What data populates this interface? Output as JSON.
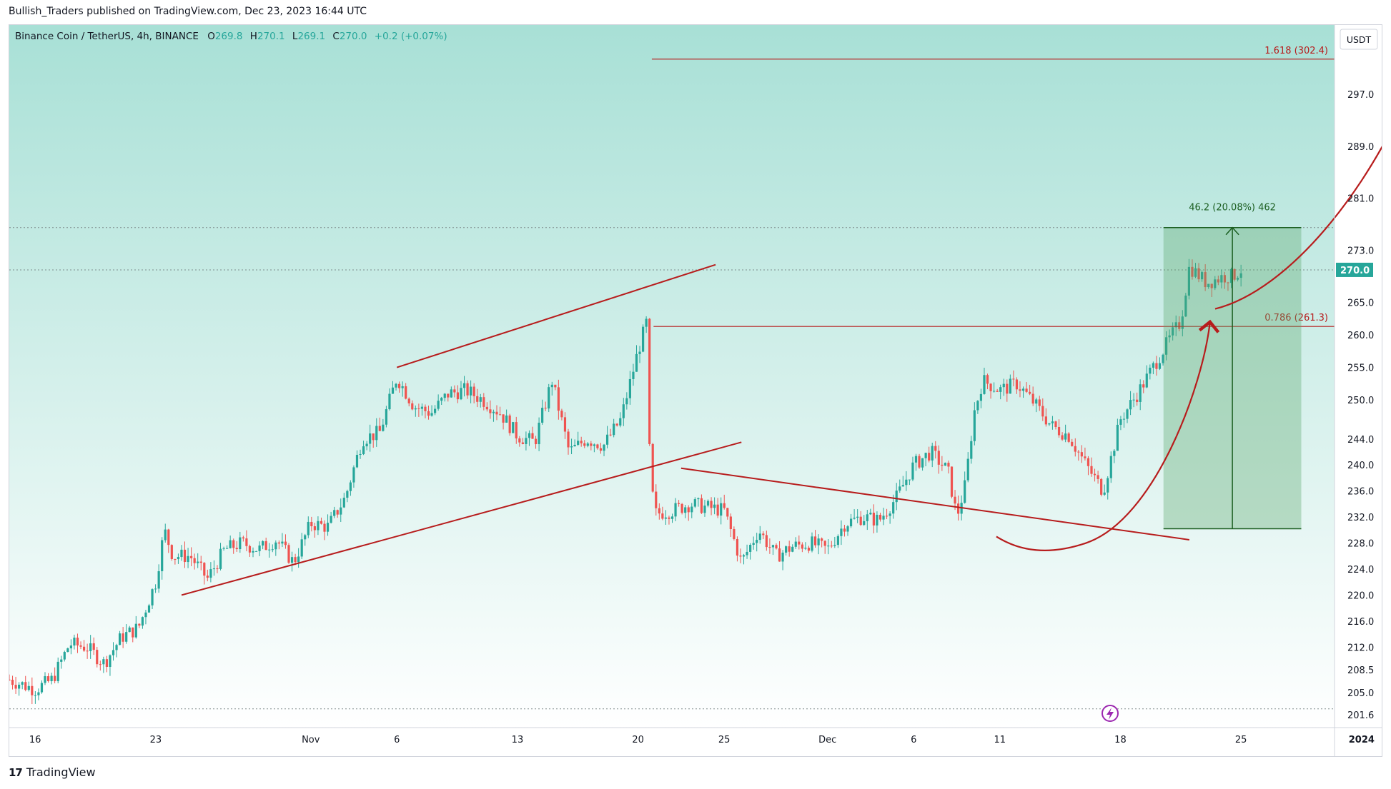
{
  "header": {
    "published": "Bullish_Traders published on TradingView.com, Dec 23, 2023 16:44 UTC"
  },
  "legend": {
    "symbol": "Binance Coin / TetherUS, 4h, BINANCE",
    "o_label": "O",
    "o": "269.8",
    "h_label": "H",
    "h": "270.1",
    "l_label": "L",
    "l": "269.1",
    "c_label": "C",
    "c": "270.0",
    "change": "+0.2 (+0.07%)"
  },
  "currency": "USDT",
  "last_price_label": "270.0",
  "footer": {
    "brand": "TradingView",
    "logo": "17"
  },
  "colors": {
    "up": "#26a69a",
    "down": "#ef5350",
    "drawing": "#b71c1c",
    "measure_fill": "#5aa56a",
    "measure_line": "#1b5e20",
    "text": "#131722",
    "bg_top": "#a8e0d6",
    "bg_bottom": "#ffffff"
  },
  "icons": {
    "logo": "tradingview-logo-icon",
    "flash": "lightning-icon"
  },
  "chart_data": {
    "type": "candlestick",
    "timeframe": "4h",
    "x_range_days": [
      -17.5,
      46.5
    ],
    "y_range": [
      200.5,
      304.5
    ],
    "x_ticks": [
      {
        "day": -16,
        "label": "16"
      },
      {
        "day": -9,
        "label": "23"
      },
      {
        "day": 0,
        "label": "Nov"
      },
      {
        "day": 5,
        "label": "6"
      },
      {
        "day": 12,
        "label": "13"
      },
      {
        "day": 19,
        "label": "20"
      },
      {
        "day": 24,
        "label": "25"
      },
      {
        "day": 30,
        "label": "Dec"
      },
      {
        "day": 35,
        "label": "6"
      },
      {
        "day": 40,
        "label": "11"
      },
      {
        "day": 47,
        "label": "18"
      },
      {
        "day": 54,
        "label": "25"
      },
      {
        "day": 61,
        "label": "2024"
      }
    ],
    "y_ticks": [
      201.6,
      205.0,
      208.5,
      212.0,
      216.0,
      220.0,
      224.0,
      228.0,
      232.0,
      236.0,
      240.0,
      244.0,
      250.0,
      255.0,
      260.0,
      265.0,
      273.0,
      281.0,
      289.0,
      297.0
    ],
    "close_path": [
      [
        -17.5,
        207
      ],
      [
        -16,
        205.5
      ],
      [
        -15,
        207
      ],
      [
        -14,
        212.5
      ],
      [
        -13,
        212
      ],
      [
        -12,
        209.5
      ],
      [
        -11,
        213.5
      ],
      [
        -10,
        215
      ],
      [
        -9,
        222
      ],
      [
        -8.5,
        230
      ],
      [
        -8,
        226
      ],
      [
        -7,
        226
      ],
      [
        -6,
        222.5
      ],
      [
        -5,
        227
      ],
      [
        -4,
        228
      ],
      [
        -3,
        227
      ],
      [
        -2,
        228.5
      ],
      [
        -1,
        225
      ],
      [
        0,
        231
      ],
      [
        1,
        230.5
      ],
      [
        2,
        235
      ],
      [
        3,
        244
      ],
      [
        4,
        245
      ],
      [
        5,
        253.5
      ],
      [
        6,
        249
      ],
      [
        7,
        248
      ],
      [
        8,
        251
      ],
      [
        9,
        251.5
      ],
      [
        10,
        250
      ],
      [
        11,
        248
      ],
      [
        12,
        244.5
      ],
      [
        13,
        243.5
      ],
      [
        14,
        253
      ],
      [
        15,
        242
      ],
      [
        16,
        244
      ],
      [
        17,
        243
      ],
      [
        18,
        247
      ],
      [
        19,
        257.5
      ],
      [
        19.5,
        262
      ],
      [
        19.7,
        238
      ],
      [
        20,
        232.5
      ],
      [
        21,
        233
      ],
      [
        22,
        234
      ],
      [
        23,
        233.5
      ],
      [
        24,
        233
      ],
      [
        25,
        225
      ],
      [
        26,
        230
      ],
      [
        27,
        226
      ],
      [
        28,
        227.5
      ],
      [
        29,
        228
      ],
      [
        30,
        227
      ],
      [
        31,
        231
      ],
      [
        32,
        232
      ],
      [
        33,
        231.5
      ],
      [
        34,
        235
      ],
      [
        35,
        240
      ],
      [
        36,
        242
      ],
      [
        37,
        239
      ],
      [
        37.5,
        232
      ],
      [
        38,
        237
      ],
      [
        38.5,
        248
      ],
      [
        39,
        253
      ],
      [
        40,
        251.5
      ],
      [
        41,
        252.5
      ],
      [
        42,
        249.5
      ],
      [
        43,
        246
      ],
      [
        44,
        244.5
      ],
      [
        45,
        240
      ],
      [
        46,
        236
      ],
      [
        47,
        247
      ],
      [
        48,
        251
      ],
      [
        49,
        255.5
      ],
      [
        50,
        260
      ],
      [
        50.5,
        262
      ],
      [
        51,
        270.5
      ],
      [
        52,
        268
      ],
      [
        53,
        269
      ],
      [
        53.5,
        269
      ],
      [
        54,
        270
      ]
    ],
    "candle_count": 380,
    "current_price": 270.0,
    "current_price_line": 270.0,
    "high_line": 276.5,
    "low_line": 202.5,
    "fib_levels": [
      {
        "ratio": "1.618",
        "price": 302.4,
        "label": "1.618 (302.4)",
        "start_day": 19.8
      },
      {
        "ratio": "0.786",
        "price": 261.3,
        "label": "0.786 (261.3)",
        "start_day": 19.9
      }
    ],
    "trendlines": [
      {
        "name": "channel-upper",
        "from": [
          5,
          255
        ],
        "to": [
          23.5,
          270.8
        ]
      },
      {
        "name": "channel-lower",
        "from": [
          -7.5,
          220
        ],
        "to": [
          25,
          243.5
        ]
      },
      {
        "name": "descending-resistance",
        "from": [
          21.5,
          239.5
        ],
        "to": [
          51,
          228.5
        ]
      }
    ],
    "measure": {
      "from_day": 49.5,
      "to_day": 57.5,
      "low": 230.2,
      "high": 276.5,
      "label": "46.2 (20.08%) 462"
    },
    "projection": {
      "points": [
        [
          52.5,
          264
        ],
        [
          57,
          267
        ],
        [
          62,
          284
        ],
        [
          64.5,
          302.2
        ]
      ],
      "arc_points": [
        [
          39.8,
          229
        ],
        [
          42,
          227.5
        ],
        [
          45,
          228
        ],
        [
          49,
          236
        ],
        [
          52.2,
          262
        ]
      ]
    }
  }
}
